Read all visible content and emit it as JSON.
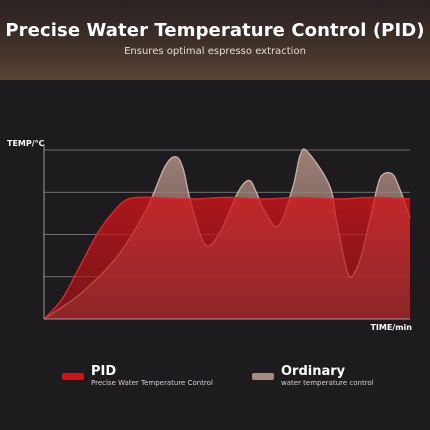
{
  "header": {
    "title": "Precise Water Temperature Control (PID)",
    "subtitle": "Ensures optimal espresso extraction"
  },
  "chart_data": {
    "type": "area",
    "xlabel": "TIME/min",
    "ylabel": "TEMP/℃",
    "xlim": [
      0,
      100
    ],
    "ylim": [
      0,
      100
    ],
    "grid": true,
    "legend_position": "bottom",
    "series": [
      {
        "name": "PID",
        "description": "Precise Water Temperature Control",
        "color": "#c8161d",
        "x": [
          0,
          5,
          10,
          15,
          20,
          23,
          26,
          30,
          40,
          50,
          60,
          70,
          80,
          90,
          100
        ],
        "y": [
          0,
          12,
          32,
          52,
          66,
          71,
          72,
          72,
          71,
          72,
          71,
          72,
          71,
          72,
          71
        ]
      },
      {
        "name": "Ordinary",
        "description": "water temperature control",
        "color": "#a58a80",
        "x": [
          0,
          10,
          20,
          28,
          33,
          36,
          38,
          40,
          44,
          48,
          53,
          56,
          58,
          60,
          64,
          68,
          70,
          72,
          78,
          80,
          83,
          85,
          87,
          90,
          92,
          95,
          97,
          100
        ],
        "y": [
          0,
          15,
          37,
          65,
          90,
          96,
          89,
          70,
          44,
          51,
          75,
          82,
          75,
          65,
          55,
          78,
          97,
          99,
          79,
          57,
          27,
          28,
          40,
          68,
          84,
          86,
          78,
          60
        ]
      }
    ]
  }
}
